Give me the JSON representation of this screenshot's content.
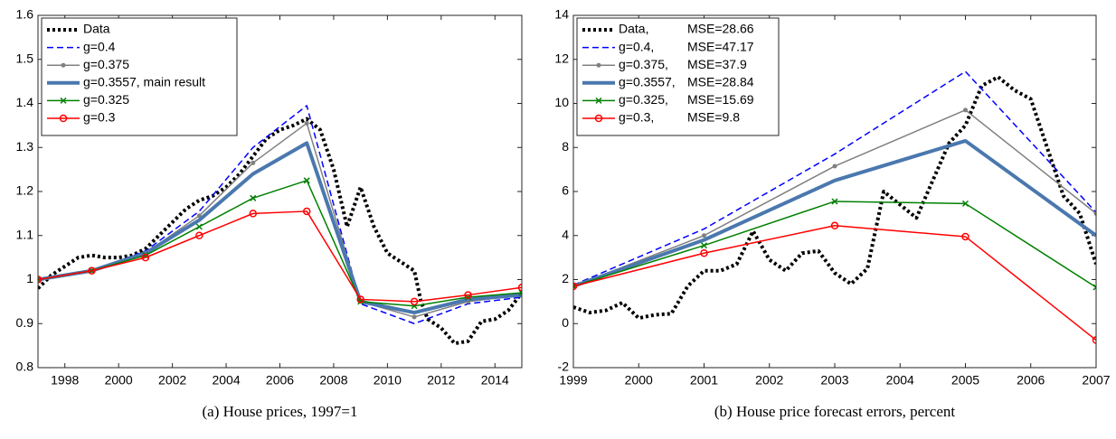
{
  "chart_data": [
    {
      "type": "line",
      "caption": "(a) House prices, 1997=1",
      "xlim": [
        1997,
        2015
      ],
      "xticks": [
        1998,
        2000,
        2002,
        2004,
        2006,
        2008,
        2010,
        2012,
        2014
      ],
      "ylim": [
        0.8,
        1.6
      ],
      "yticks": [
        0.8,
        0.9,
        1,
        1.1,
        1.2,
        1.3,
        1.4,
        1.5,
        1.6
      ],
      "legend": "upper left",
      "series": [
        {
          "name": "Data",
          "color": "#000000",
          "style": "dotted",
          "marker": "none",
          "x": [
            1997,
            1997.5,
            1998,
            1998.5,
            1999,
            1999.5,
            2000,
            2000.5,
            2001,
            2001.5,
            2002,
            2002.5,
            2003,
            2003.5,
            2004,
            2004.5,
            2005,
            2005.5,
            2006,
            2006.5,
            2007,
            2007.5,
            2008,
            2008.5,
            2009,
            2009.5,
            2010,
            2010.5,
            2011,
            2011.25,
            2011.5,
            2012,
            2012.5,
            2013,
            2013.5,
            2014,
            2014.5,
            2015
          ],
          "values": [
            0.98,
            1.01,
            1.03,
            1.05,
            1.055,
            1.05,
            1.05,
            1.055,
            1.07,
            1.1,
            1.13,
            1.16,
            1.18,
            1.19,
            1.21,
            1.24,
            1.28,
            1.32,
            1.34,
            1.35,
            1.365,
            1.34,
            1.25,
            1.12,
            1.21,
            1.12,
            1.06,
            1.04,
            1.02,
            0.95,
            0.91,
            0.89,
            0.855,
            0.86,
            0.905,
            0.91,
            0.93,
            0.97
          ]
        },
        {
          "name": "g=0.4",
          "color": "#0000ff",
          "style": "dashed",
          "marker": "none",
          "x": [
            1997,
            1999,
            2001,
            2003,
            2005,
            2007,
            2009,
            2011,
            2013,
            2015
          ],
          "values": [
            1.0,
            1.02,
            1.065,
            1.155,
            1.3,
            1.395,
            0.945,
            0.9,
            0.945,
            0.96
          ]
        },
        {
          "name": "g=0.375",
          "color": "#808080",
          "style": "solid",
          "marker": "dot",
          "x": [
            1997,
            1999,
            2001,
            2003,
            2005,
            2007,
            2009,
            2011,
            2013,
            2015
          ],
          "values": [
            1.0,
            1.02,
            1.06,
            1.145,
            1.265,
            1.355,
            0.95,
            0.915,
            0.95,
            0.965
          ]
        },
        {
          "name": "g=0.3557, main result",
          "color": "#4a78ae",
          "style": "thick",
          "marker": "none",
          "x": [
            1997,
            1999,
            2001,
            2003,
            2005,
            2007,
            2009,
            2011,
            2013,
            2015
          ],
          "values": [
            1.0,
            1.02,
            1.06,
            1.135,
            1.24,
            1.31,
            0.95,
            0.925,
            0.955,
            0.965
          ]
        },
        {
          "name": "g=0.325",
          "color": "#008000",
          "style": "solid",
          "marker": "x",
          "x": [
            1997,
            1999,
            2001,
            2003,
            2005,
            2007,
            2009,
            2011,
            2013,
            2015
          ],
          "values": [
            1.0,
            1.02,
            1.055,
            1.12,
            1.185,
            1.225,
            0.95,
            0.94,
            0.96,
            0.97
          ]
        },
        {
          "name": "g=0.3",
          "color": "#ff0000",
          "style": "solid",
          "marker": "circle",
          "x": [
            1997,
            1999,
            2001,
            2003,
            2005,
            2007,
            2009,
            2011,
            2013,
            2015
          ],
          "values": [
            1.0,
            1.02,
            1.05,
            1.1,
            1.15,
            1.155,
            0.955,
            0.95,
            0.965,
            0.982
          ]
        }
      ]
    },
    {
      "type": "line",
      "caption": "(b) House price forecast errors, percent",
      "xlim": [
        1999,
        2007
      ],
      "xticks": [
        1999,
        2000,
        2001,
        2002,
        2003,
        2004,
        2005,
        2006,
        2007
      ],
      "ylim": [
        -2,
        14
      ],
      "yticks": [
        -2,
        0,
        2,
        4,
        6,
        8,
        10,
        12,
        14
      ],
      "legend": "upper left",
      "series": [
        {
          "name": "Data,",
          "legend_note": "MSE=28.66",
          "color": "#000000",
          "style": "dotted",
          "marker": "none",
          "x": [
            1999,
            1999.25,
            1999.5,
            1999.75,
            2000,
            2000.25,
            2000.5,
            2000.75,
            2001,
            2001.25,
            2001.5,
            2001.75,
            2002,
            2002.25,
            2002.5,
            2002.75,
            2003,
            2003.25,
            2003.5,
            2003.75,
            2004,
            2004.25,
            2004.5,
            2004.75,
            2005,
            2005.25,
            2005.5,
            2005.75,
            2006,
            2006.25,
            2006.5,
            2006.75,
            2007
          ],
          "values": [
            0.75,
            0.5,
            0.6,
            0.95,
            0.25,
            0.4,
            0.45,
            1.7,
            2.4,
            2.4,
            2.7,
            4.2,
            2.9,
            2.4,
            3.2,
            3.3,
            2.3,
            1.8,
            2.5,
            6.0,
            5.4,
            4.8,
            6.5,
            8.2,
            9.0,
            10.8,
            11.2,
            10.6,
            10.2,
            8.0,
            5.8,
            5.0,
            2.7
          ]
        },
        {
          "name": "g=0.4,",
          "legend_note": "MSE=47.17",
          "color": "#0000ff",
          "style": "dashed",
          "marker": "none",
          "x": [
            1999,
            2001,
            2003,
            2005,
            2007
          ],
          "values": [
            1.75,
            4.3,
            7.7,
            11.45,
            5.05
          ]
        },
        {
          "name": "g=0.375,",
          "legend_note": "MSE=37.9",
          "color": "#808080",
          "style": "solid",
          "marker": "dot",
          "x": [
            1999,
            2001,
            2003,
            2005,
            2007
          ],
          "values": [
            1.7,
            4.0,
            7.15,
            9.7,
            5.0
          ]
        },
        {
          "name": "g=0.3557,",
          "legend_note": "MSE=28.84",
          "color": "#4a78ae",
          "style": "thick",
          "marker": "none",
          "x": [
            1999,
            2001,
            2003,
            2005,
            2007
          ],
          "values": [
            1.7,
            3.8,
            6.5,
            8.3,
            4.0
          ]
        },
        {
          "name": "g=0.325,",
          "legend_note": "MSE=15.69",
          "color": "#008000",
          "style": "solid",
          "marker": "x",
          "x": [
            1999,
            2001,
            2003,
            2005,
            2007
          ],
          "values": [
            1.7,
            3.55,
            5.55,
            5.45,
            1.65
          ]
        },
        {
          "name": "g=0.3,",
          "legend_note": "MSE=9.8",
          "color": "#ff0000",
          "style": "solid",
          "marker": "circle",
          "x": [
            1999,
            2001,
            2003,
            2005,
            2007
          ],
          "values": [
            1.7,
            3.2,
            4.45,
            3.95,
            -0.75
          ]
        }
      ]
    }
  ]
}
